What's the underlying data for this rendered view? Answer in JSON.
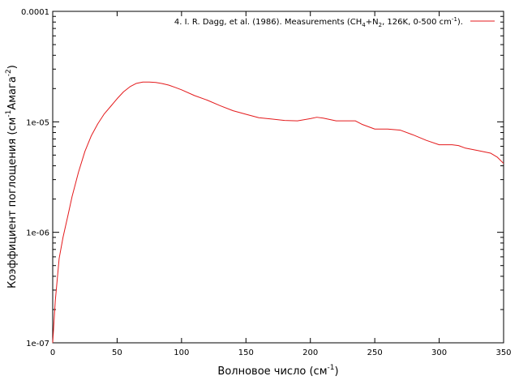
{
  "chart_data": {
    "type": "line",
    "xlabel": "Волновое число (см⁻¹)",
    "xlabel_parts": {
      "prefix": "Волновое число (см",
      "sup": "-1",
      "suffix": ")"
    },
    "ylabel": "Коэффициент поглощения (см⁻¹Амага⁻²)",
    "ylabel_parts": {
      "prefix": "Коэффициент поглощения (см",
      "sup1": "-1",
      "mid": "Амага",
      "sup2": "-2",
      "suffix": ")"
    },
    "xlim": [
      0,
      350
    ],
    "ylim": [
      1e-07,
      0.0001
    ],
    "yscale": "log",
    "grid": false,
    "legend_position": "top-right",
    "x_ticks": [
      0,
      50,
      100,
      150,
      200,
      250,
      300,
      350
    ],
    "x_tick_labels": [
      "0",
      "50",
      "100",
      "150",
      "200",
      "250",
      "300",
      "350"
    ],
    "y_ticks": [
      1e-07,
      1e-06,
      1e-05,
      0.0001
    ],
    "y_tick_labels": [
      "1e-07",
      "1e-06",
      "1e-05",
      "0.0001"
    ],
    "series": [
      {
        "name": "4. I. R. Dagg, et al. (1986). Measurements (CH₄+N₂, 126K, 0-500 cm⁻¹).",
        "name_parts": {
          "p1": "4. I. R. Dagg, et al. (1986). Measurements (CH",
          "sub1": "4",
          "p2": "+N",
          "sub2": "2",
          "p3": ", 126K, 0-500 cm",
          "sup": "-1",
          "p4": ")."
        },
        "color": "#e41a1c",
        "x": [
          0,
          2,
          5,
          8,
          12,
          15,
          20,
          25,
          30,
          35,
          40,
          45,
          50,
          55,
          60,
          65,
          70,
          75,
          80,
          85,
          90,
          95,
          100,
          110,
          120,
          130,
          140,
          150,
          160,
          170,
          180,
          190,
          200,
          205,
          210,
          220,
          230,
          235,
          240,
          250,
          260,
          270,
          280,
          290,
          300,
          310,
          315,
          320,
          330,
          340,
          345,
          350
        ],
        "y": [
          1e-07,
          2.4e-07,
          5.8e-07,
          9e-07,
          1.45e-06,
          2.1e-06,
          3.5e-06,
          5.4e-06,
          7.5e-06,
          9.6e-06,
          1.18e-05,
          1.38e-05,
          1.62e-05,
          1.87e-05,
          2.08e-05,
          2.23e-05,
          2.29e-05,
          2.29e-05,
          2.27e-05,
          2.22e-05,
          2.15e-05,
          2.05e-05,
          1.95e-05,
          1.73e-05,
          1.57e-05,
          1.4e-05,
          1.26e-05,
          1.17e-05,
          1.09e-05,
          1.06e-05,
          1.03e-05,
          1.02e-05,
          1.07e-05,
          1.1e-05,
          1.08e-05,
          1.02e-05,
          1.02e-05,
          1.02e-05,
          9.5e-06,
          8.6e-06,
          8.6e-06,
          8.4e-06,
          7.6e-06,
          6.8e-06,
          6.2e-06,
          6.2e-06,
          6.1e-06,
          5.8e-06,
          5.5e-06,
          5.2e-06,
          4.8e-06,
          4.2e-06
        ]
      }
    ]
  }
}
